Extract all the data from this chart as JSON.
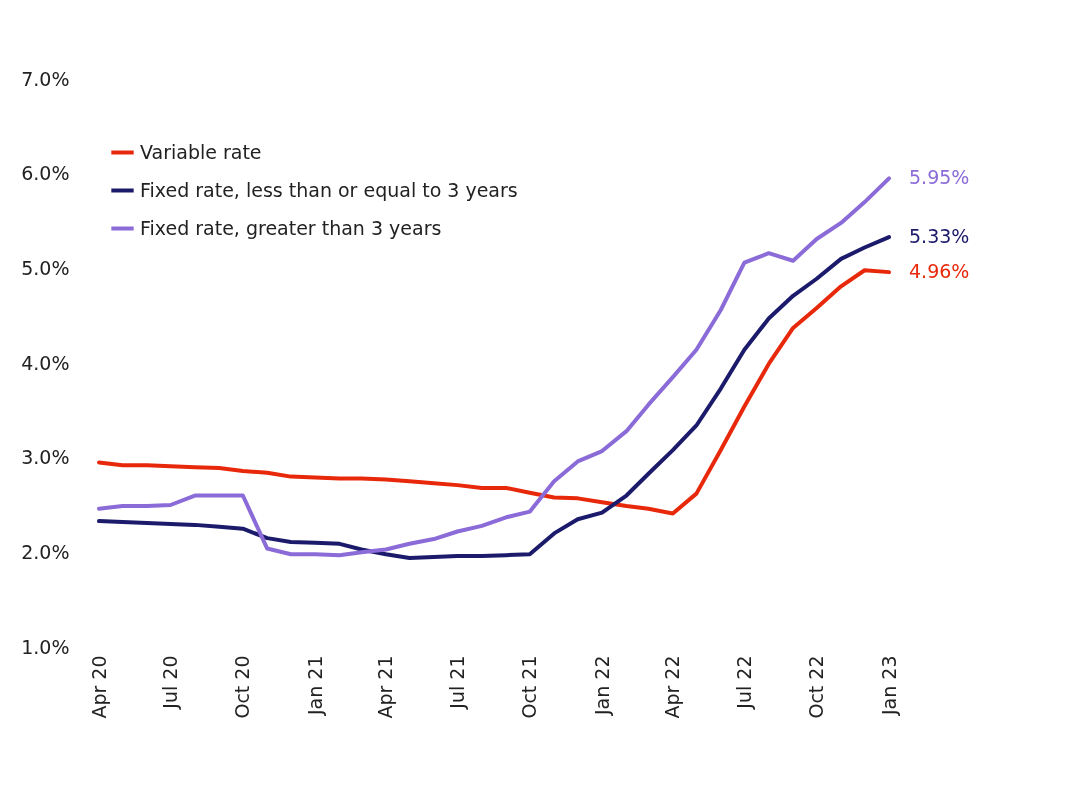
{
  "chart_data": {
    "type": "line",
    "x": [
      "2020-04",
      "2020-05",
      "2020-06",
      "2020-07",
      "2020-08",
      "2020-09",
      "2020-10",
      "2020-11",
      "2020-12",
      "2021-01",
      "2021-02",
      "2021-03",
      "2021-04",
      "2021-05",
      "2021-06",
      "2021-07",
      "2021-08",
      "2021-09",
      "2021-10",
      "2021-11",
      "2021-12",
      "2022-01",
      "2022-02",
      "2022-03",
      "2022-04",
      "2022-05",
      "2022-06",
      "2022-07",
      "2022-08",
      "2022-09",
      "2022-10",
      "2022-11",
      "2022-12",
      "2023-01"
    ],
    "series": [
      {
        "name": "Variable rate",
        "color": "#e8280b",
        "values": [
          2.95,
          2.92,
          2.92,
          2.91,
          2.9,
          2.89,
          2.86,
          2.84,
          2.8,
          2.79,
          2.78,
          2.78,
          2.77,
          2.75,
          2.73,
          2.71,
          2.68,
          2.68,
          2.63,
          2.58,
          2.57,
          2.53,
          2.49,
          2.46,
          2.41,
          2.62,
          3.08,
          3.54,
          3.99,
          4.37,
          4.58,
          4.81,
          4.98,
          4.96
        ],
        "value_labels": [
          null,
          null,
          null,
          null,
          null,
          null,
          null,
          null,
          null,
          null,
          null,
          null,
          null,
          null,
          null,
          null,
          null,
          null,
          null,
          null,
          null,
          null,
          null,
          null,
          null,
          null,
          null,
          null,
          null,
          null,
          null,
          null,
          null,
          "4.96%"
        ]
      },
      {
        "name": "Fixed rate, less than or equal to 3 years",
        "color": "#1b1a6b",
        "values": [
          2.33,
          2.32,
          2.31,
          2.3,
          2.29,
          2.27,
          2.25,
          2.15,
          2.11,
          2.1,
          2.09,
          2.03,
          1.98,
          1.94,
          1.95,
          1.96,
          1.96,
          1.97,
          1.98,
          2.2,
          2.35,
          2.42,
          2.6,
          2.83,
          3.08,
          3.34,
          3.73,
          4.14,
          4.47,
          4.71,
          4.89,
          5.1,
          5.22,
          5.33
        ],
        "value_labels": [
          null,
          null,
          null,
          null,
          null,
          null,
          null,
          null,
          null,
          null,
          null,
          null,
          null,
          null,
          null,
          null,
          null,
          null,
          null,
          null,
          null,
          null,
          null,
          null,
          null,
          null,
          null,
          null,
          null,
          null,
          null,
          null,
          null,
          "5.33%"
        ]
      },
      {
        "name": "Fixed rate, greater than 3 years",
        "color": "#8a6bd8",
        "values": [
          2.46,
          2.49,
          2.49,
          2.5,
          2.6,
          2.6,
          2.6,
          2.04,
          1.98,
          1.98,
          1.97,
          2.0,
          2.03,
          2.09,
          2.14,
          2.22,
          2.28,
          2.37,
          2.43,
          2.75,
          2.96,
          3.07,
          3.28,
          3.56,
          3.85,
          4.14,
          4.56,
          5.06,
          5.16,
          5.08,
          5.31,
          5.48,
          5.7,
          5.95
        ],
        "value_labels": [
          null,
          null,
          null,
          null,
          null,
          null,
          null,
          null,
          null,
          null,
          null,
          null,
          null,
          null,
          null,
          null,
          null,
          null,
          null,
          null,
          null,
          null,
          null,
          null,
          null,
          null,
          null,
          null,
          null,
          null,
          null,
          null,
          null,
          "5.95%"
        ]
      }
    ],
    "xlim": [
      "2020-04",
      "2023-01"
    ],
    "xticks": [
      {
        "value": "2020-04",
        "label": "Apr 20"
      },
      {
        "value": "2020-07",
        "label": "Jul 20"
      },
      {
        "value": "2020-10",
        "label": "Oct 20"
      },
      {
        "value": "2021-01",
        "label": "Jan 21"
      },
      {
        "value": "2021-04",
        "label": "Apr 21"
      },
      {
        "value": "2021-07",
        "label": "Jul 21"
      },
      {
        "value": "2021-10",
        "label": "Oct 21"
      },
      {
        "value": "2022-01",
        "label": "Jan 22"
      },
      {
        "value": "2022-04",
        "label": "Apr 22"
      },
      {
        "value": "2022-07",
        "label": "Jul 22"
      },
      {
        "value": "2022-10",
        "label": "Oct 22"
      },
      {
        "value": "2023-01",
        "label": "Jan 23"
      }
    ],
    "ylim": [
      1,
      7
    ],
    "yticks": [
      {
        "value": 1,
        "label": "1.0%"
      },
      {
        "value": 2,
        "label": "2.0%"
      },
      {
        "value": 3,
        "label": "3.0%"
      },
      {
        "value": 4,
        "label": "4.0%"
      },
      {
        "value": 5,
        "label": "5.0%"
      },
      {
        "value": 6,
        "label": "6.0%"
      },
      {
        "value": 7,
        "label": "7.0%"
      }
    ],
    "grid": false,
    "legend": "top left",
    "line_style": "solid",
    "marker": "none"
  }
}
